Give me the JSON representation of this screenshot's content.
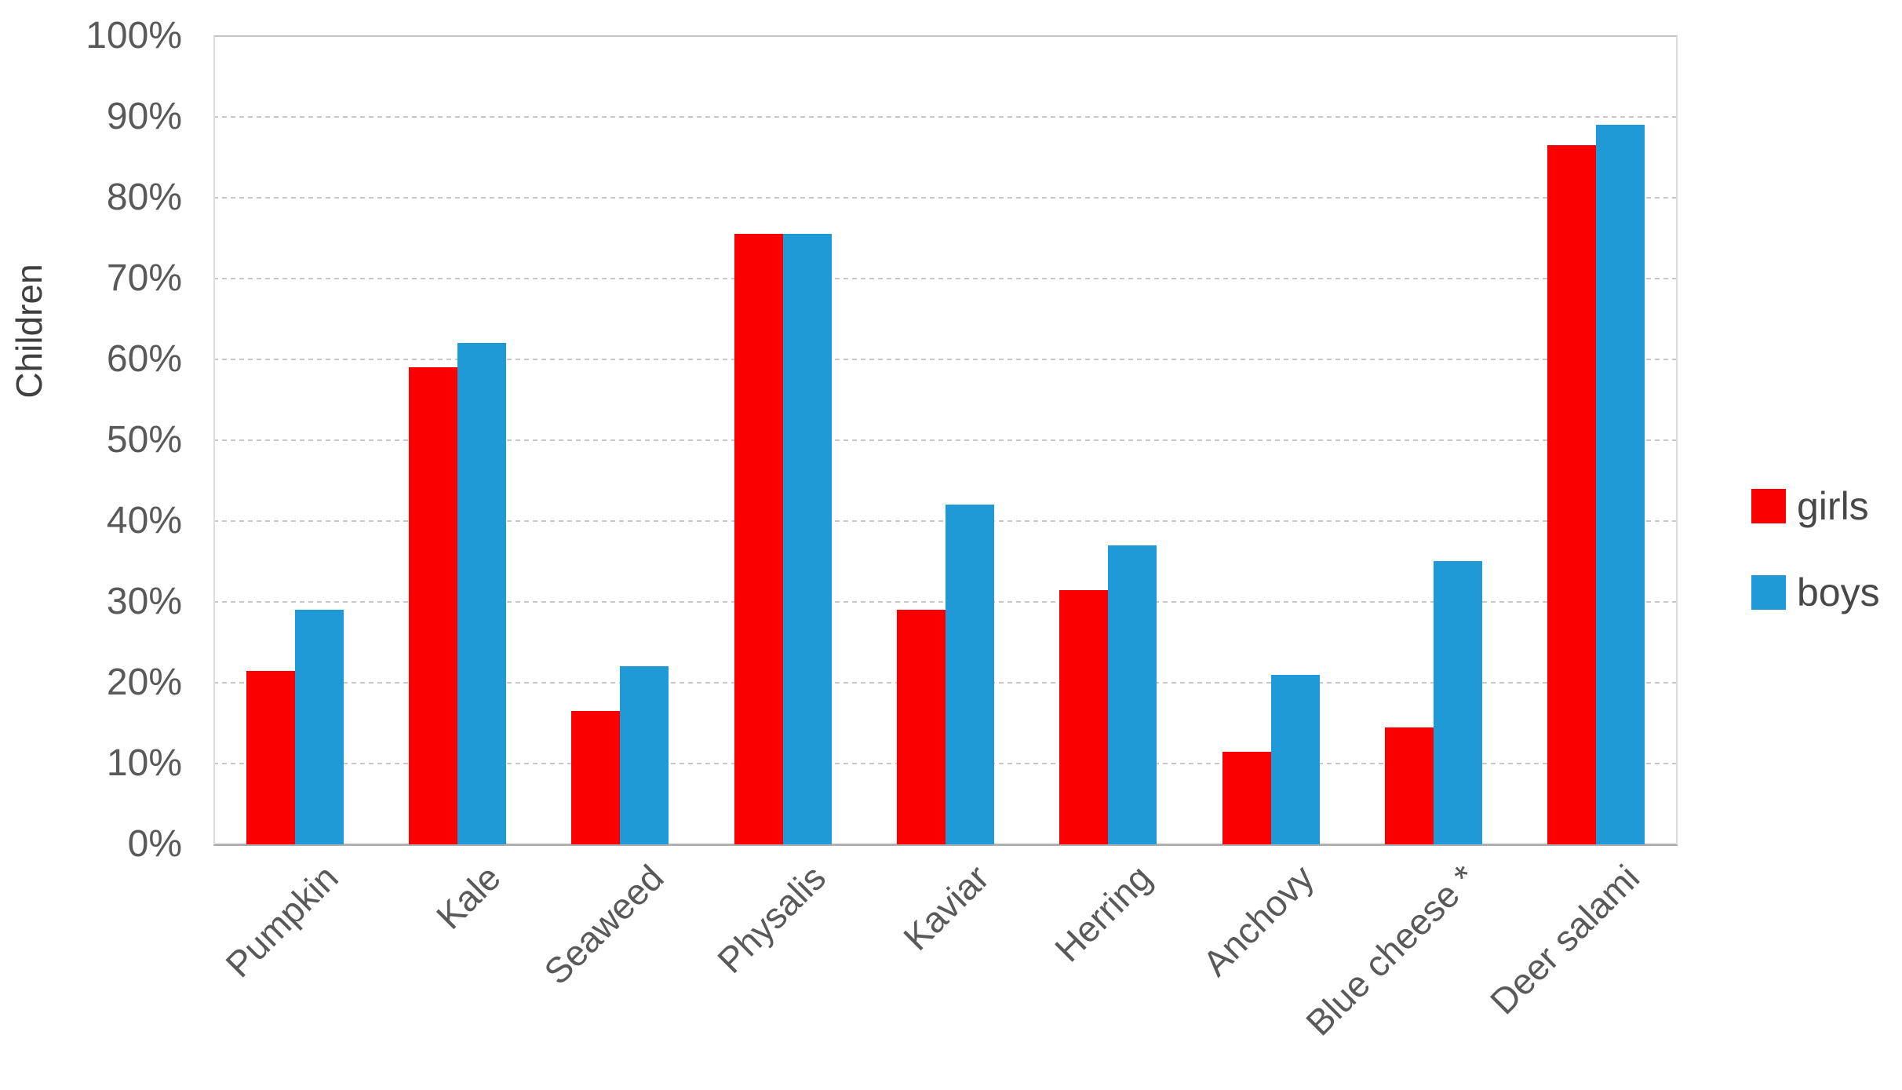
{
  "chart_data": {
    "type": "bar",
    "title": "",
    "xlabel": "",
    "ylabel": "Children",
    "categories": [
      "Pumpkin",
      "Kale",
      "Seaweed",
      "Physalis",
      "Kaviar",
      "Herring",
      "Anchovy",
      "Blue cheese *",
      "Deer salami"
    ],
    "series": [
      {
        "name": "girls",
        "color": "#fb0000",
        "values": [
          21.5,
          59,
          16.5,
          75.5,
          29,
          31.5,
          11.5,
          14.5,
          86.5
        ]
      },
      {
        "name": "boys",
        "color": "#1f9ad7",
        "values": [
          29,
          62,
          22,
          75.5,
          42,
          37,
          21,
          35,
          89
        ]
      }
    ],
    "y_axis": {
      "min": 0,
      "max": 100,
      "step": 10,
      "tick_labels": [
        "0%",
        "10%",
        "20%",
        "30%",
        "40%",
        "50%",
        "60%",
        "70%",
        "80%",
        "90%",
        "100%"
      ]
    },
    "legend_position": "right",
    "grid": true,
    "colors": {
      "gridline": "#c8c8c8",
      "axis_text": "#595959",
      "legend_text": "#484848"
    }
  }
}
